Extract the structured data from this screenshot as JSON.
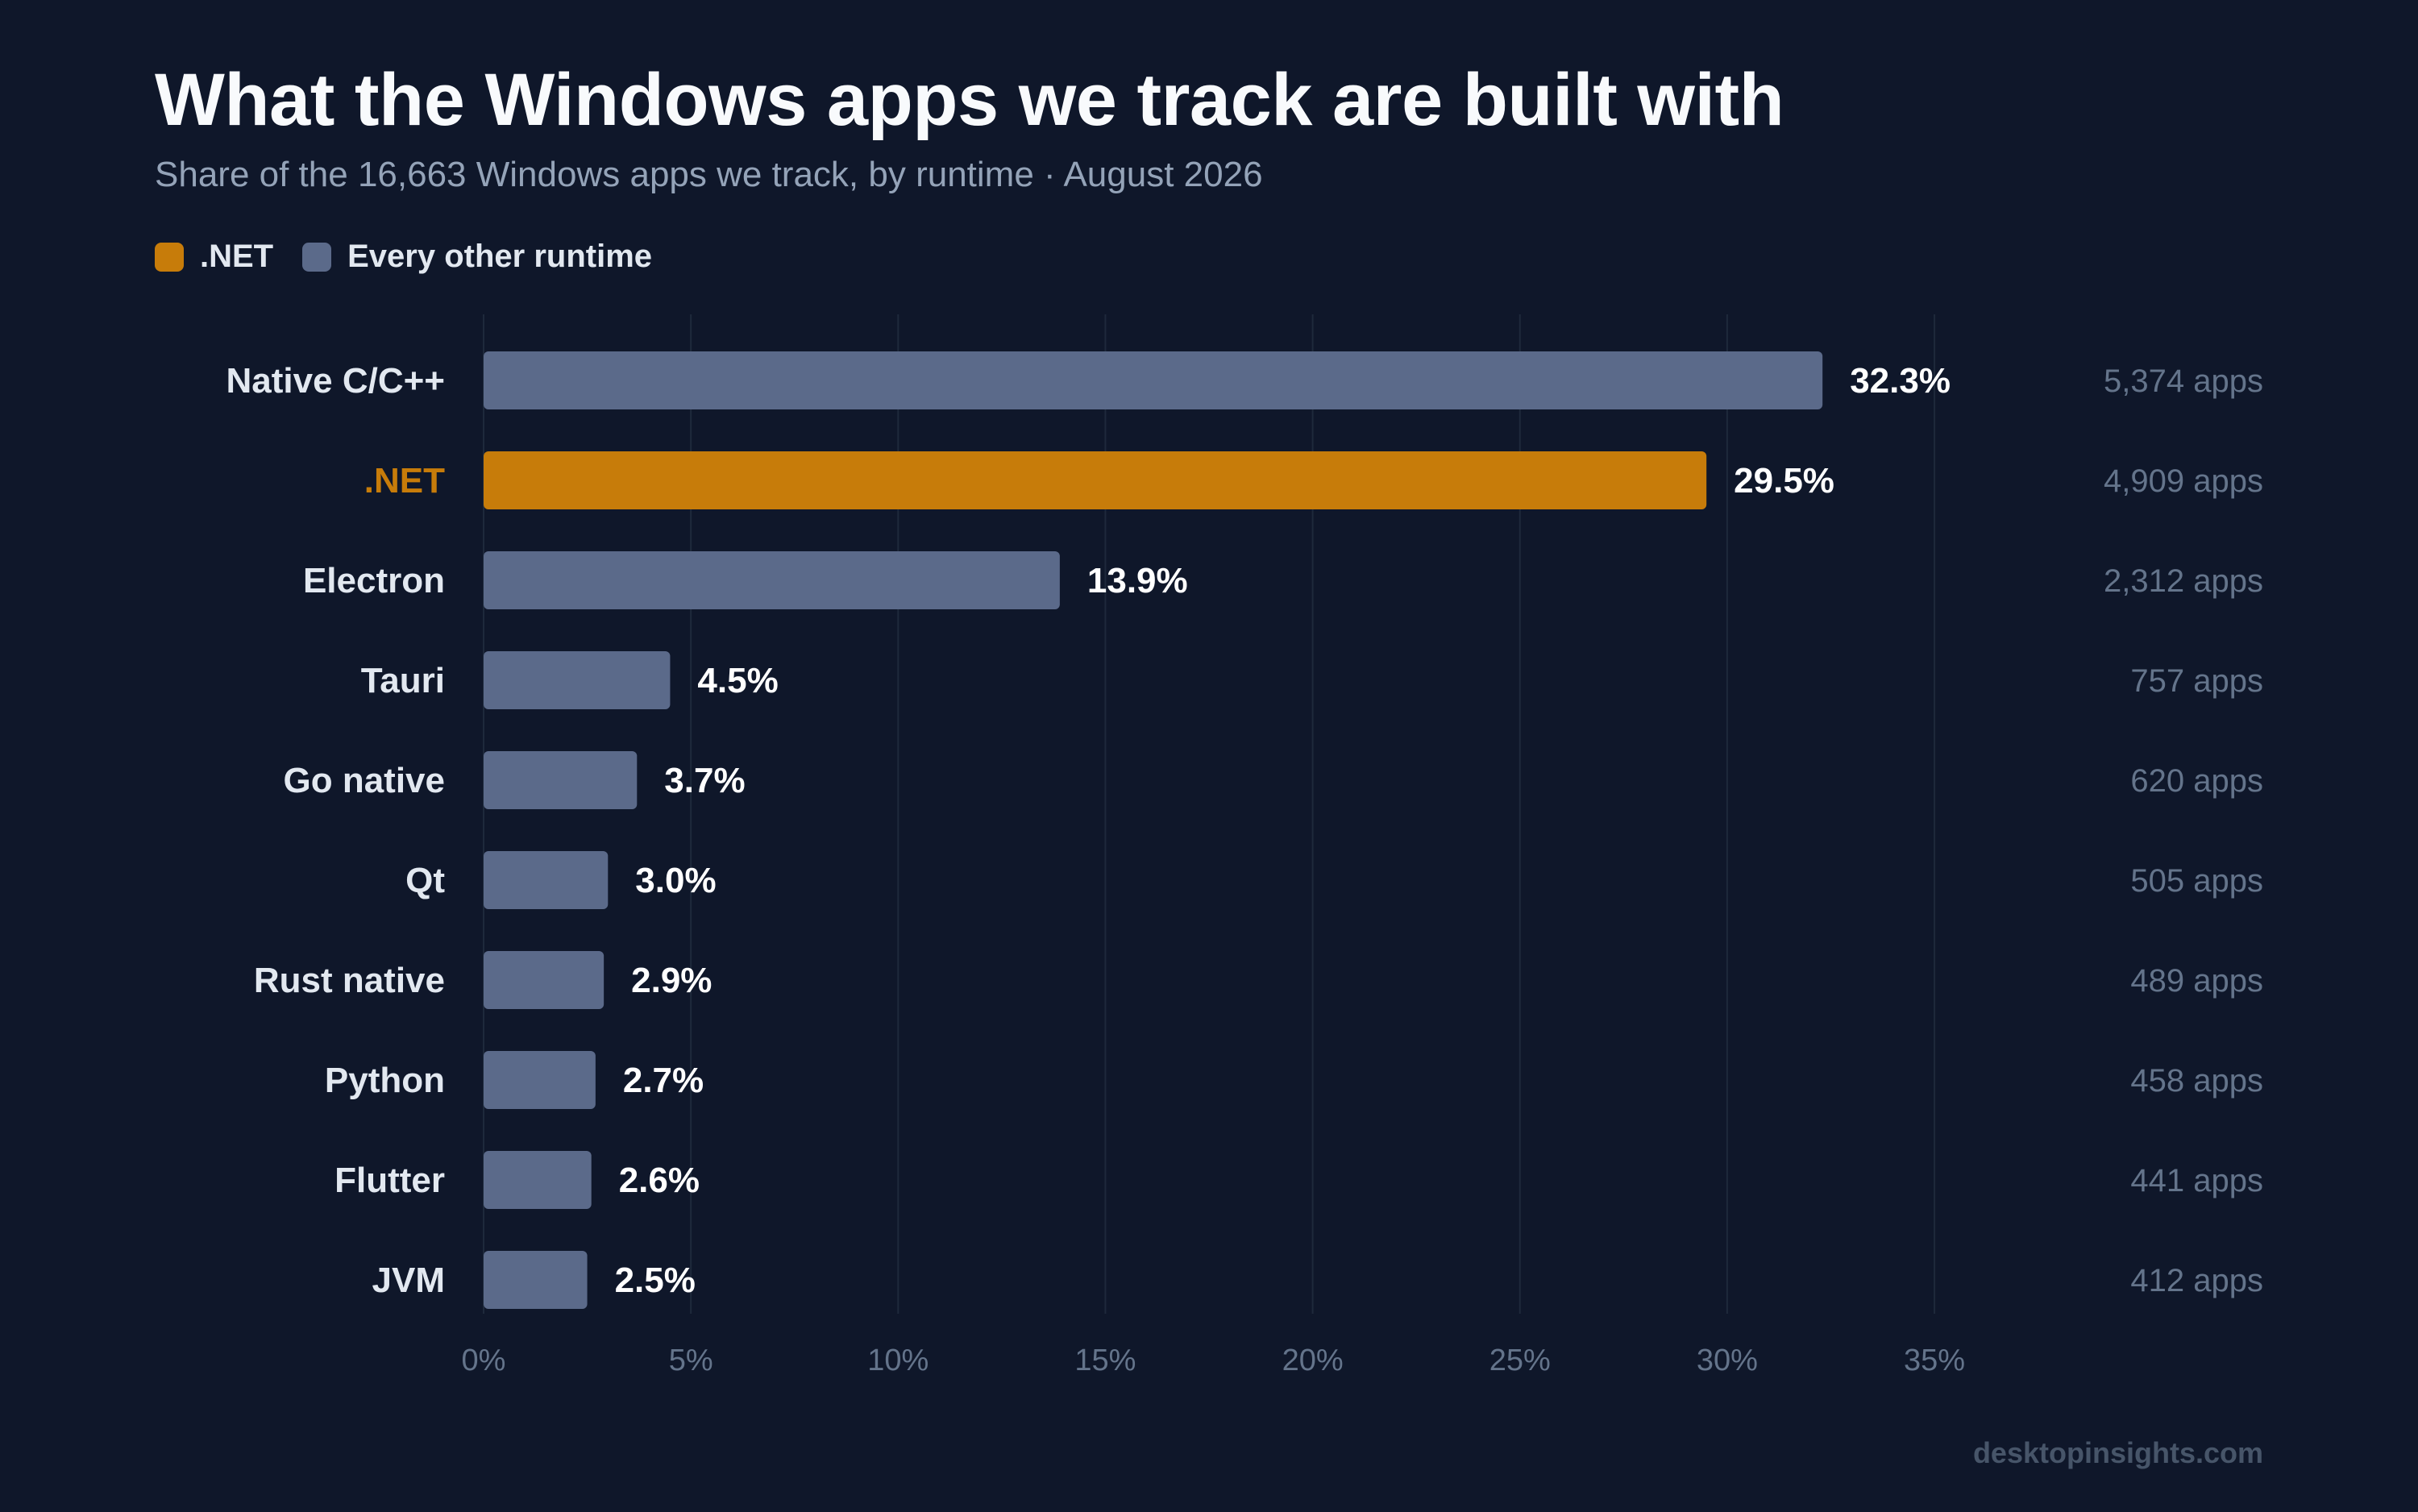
{
  "header": {
    "title": "What the Windows apps we track are built with",
    "subtitle": "Share of the 16,663 Windows apps we track, by runtime · August 2026"
  },
  "legend": [
    {
      "label": ".NET",
      "color": "#c77c0a"
    },
    {
      "label": "Every other runtime",
      "color": "#5b6a8a"
    }
  ],
  "watermark": "desktopinsights.com",
  "colors": {
    "highlight": "#c77c0a",
    "default_bar": "#5b6a8a",
    "background": "#0f172a",
    "grid": "#1e293b",
    "category_label": "#e2e8f0",
    "value_label": "#ffffff",
    "count_label": "#64748b",
    "tick_label": "#64748b"
  },
  "chart_data": {
    "type": "bar",
    "orientation": "horizontal",
    "categories": [
      "Native C/C++",
      ".NET",
      "Electron",
      "Tauri",
      "Go native",
      "Qt",
      "Rust native",
      "Python",
      "Flutter",
      "JVM"
    ],
    "values": [
      32.3,
      29.5,
      13.9,
      4.5,
      3.7,
      3.0,
      2.9,
      2.7,
      2.6,
      2.5
    ],
    "value_labels": [
      "32.3%",
      "29.5%",
      "13.9%",
      "4.5%",
      "3.7%",
      "3.0%",
      "2.9%",
      "2.7%",
      "2.6%",
      "2.5%"
    ],
    "counts": [
      "5,374 apps",
      "4,909 apps",
      "2,312 apps",
      "757 apps",
      "620 apps",
      "505 apps",
      "489 apps",
      "458 apps",
      "441 apps",
      "412 apps"
    ],
    "highlight": ".NET",
    "xlim": [
      0,
      35
    ],
    "xticks": [
      0,
      5,
      10,
      15,
      20,
      25,
      30,
      35
    ],
    "xtick_labels": [
      "0%",
      "5%",
      "10%",
      "15%",
      "20%",
      "25%",
      "30%",
      "35%"
    ],
    "grid": true,
    "legend_position": "top-left"
  }
}
